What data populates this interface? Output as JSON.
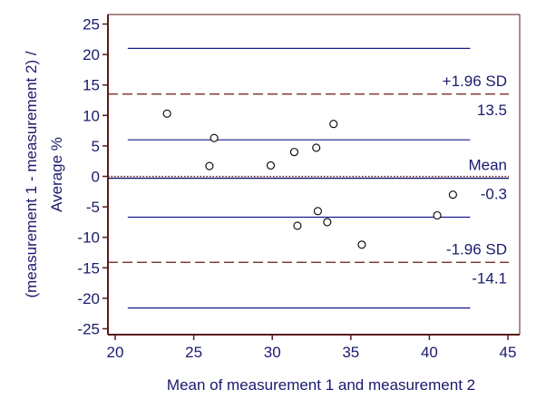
{
  "chart_data": {
    "type": "scatter",
    "title": "",
    "xlabel": "Mean of measurement 1 and measurement 2",
    "ylabel_lines": [
      "(measurement 1 - measurement 2) /",
      "Average %"
    ],
    "xlim": [
      20,
      45
    ],
    "ylim": [
      -26,
      26
    ],
    "x_ticks": [
      20,
      25,
      30,
      35,
      40,
      45
    ],
    "y_ticks": [
      25,
      20,
      15,
      10,
      5,
      0,
      -5,
      -10,
      -15,
      -20,
      -25
    ],
    "grid": false,
    "legend": "none",
    "points": [
      {
        "x": 23.3,
        "y": 10.3
      },
      {
        "x": 26.3,
        "y": 6.3
      },
      {
        "x": 26.0,
        "y": 1.7
      },
      {
        "x": 29.9,
        "y": 1.8
      },
      {
        "x": 31.4,
        "y": 4.0
      },
      {
        "x": 32.8,
        "y": 4.7
      },
      {
        "x": 33.9,
        "y": 8.6
      },
      {
        "x": 31.6,
        "y": -8.1
      },
      {
        "x": 32.9,
        "y": -5.7
      },
      {
        "x": 33.5,
        "y": -7.5
      },
      {
        "x": 35.7,
        "y": -11.2
      },
      {
        "x": 40.5,
        "y": -6.4
      },
      {
        "x": 41.5,
        "y": -3.0
      }
    ],
    "reference_lines": [
      {
        "name": "upper-ci-upper",
        "y": 21.0,
        "style": "solid"
      },
      {
        "name": "upper-loa",
        "y": 13.5,
        "style": "dashed",
        "label": "+1.96 SD",
        "value_label": "13.5"
      },
      {
        "name": "upper-ci-lower",
        "y": 6.0,
        "style": "solid"
      },
      {
        "name": "zero",
        "y": 0,
        "style": "dotted"
      },
      {
        "name": "mean",
        "y": -0.3,
        "style": "solid",
        "label": "Mean",
        "value_label": "-0.3"
      },
      {
        "name": "lower-ci-upper",
        "y": -6.7,
        "style": "solid"
      },
      {
        "name": "lower-loa",
        "y": -14.1,
        "style": "dashed",
        "label": "-1.96 SD",
        "value_label": "-14.1"
      },
      {
        "name": "lower-ci-lower",
        "y": -21.6,
        "style": "solid"
      }
    ],
    "line_x_range": [
      20.8,
      42.6
    ],
    "colors": {
      "axis": "#5a1a1a",
      "text": "#1a1a6e",
      "ci_line": "#1a1a8c",
      "loa_line": "#6b1a1a",
      "zero_line": "#6b1a1a",
      "mean_line": "#1a1a6e",
      "marker": "#000000"
    }
  }
}
